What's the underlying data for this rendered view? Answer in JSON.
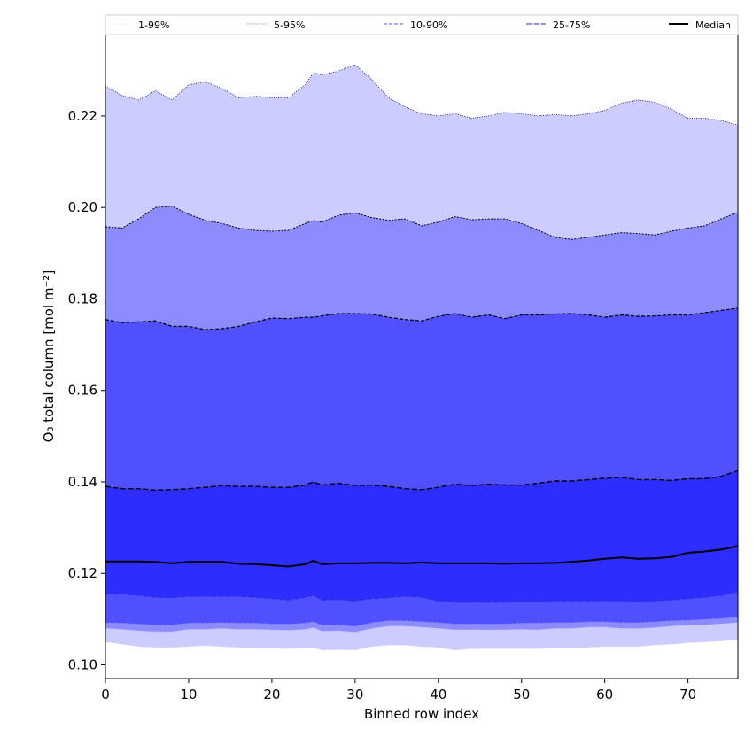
{
  "chart_data": {
    "type": "area",
    "xlabel": "Binned row index",
    "ylabel": "O₃ total column [mol m⁻²]",
    "xlim": [
      0,
      76
    ],
    "ylim": [
      0.097,
      0.238
    ],
    "x_ticks": [
      0,
      10,
      20,
      30,
      40,
      50,
      60,
      70
    ],
    "y_ticks": [
      0.1,
      0.12,
      0.14,
      0.16,
      0.18,
      0.2,
      0.22
    ],
    "y_tick_labels": [
      "0.10",
      "0.12",
      "0.14",
      "0.16",
      "0.18",
      "0.20",
      "0.22"
    ],
    "grid": false,
    "legend_position": "top",
    "x": [
      0,
      2,
      4,
      6,
      8,
      10,
      12,
      14,
      16,
      18,
      20,
      22,
      24,
      25,
      26,
      28,
      30,
      32,
      34,
      36,
      38,
      40,
      42,
      44,
      46,
      48,
      50,
      52,
      54,
      56,
      58,
      60,
      62,
      64,
      66,
      68,
      70,
      72,
      74,
      76
    ],
    "bands": [
      {
        "name": "1-99%",
        "color": "#ccccff",
        "lower": [
          0.105,
          0.1045,
          0.104,
          0.1038,
          0.1038,
          0.104,
          0.1042,
          0.104,
          0.1038,
          0.1037,
          0.1036,
          0.1035,
          0.1037,
          0.1038,
          0.1032,
          0.1033,
          0.1032,
          0.104,
          0.1043,
          0.1043,
          0.104,
          0.1038,
          0.1032,
          0.1035,
          0.1035,
          0.1035,
          0.1035,
          0.1035,
          0.1037,
          0.1037,
          0.1038,
          0.104,
          0.104,
          0.104,
          0.1043,
          0.1045,
          0.1048,
          0.105,
          0.1052,
          0.1055
        ],
        "upper": [
          0.2265,
          0.2245,
          0.2235,
          0.2255,
          0.2235,
          0.2268,
          0.2275,
          0.226,
          0.224,
          0.2243,
          0.224,
          0.224,
          0.2268,
          0.2295,
          0.229,
          0.2298,
          0.2312,
          0.228,
          0.224,
          0.222,
          0.2205,
          0.22,
          0.2205,
          0.2195,
          0.22,
          0.2208,
          0.2205,
          0.22,
          0.2203,
          0.22,
          0.2205,
          0.2212,
          0.2228,
          0.2235,
          0.223,
          0.2215,
          0.2195,
          0.2195,
          0.219,
          0.218
        ]
      },
      {
        "name": "5-95%",
        "color": "#8c8cff",
        "lower": [
          0.108,
          0.1078,
          0.1075,
          0.1073,
          0.1073,
          0.1078,
          0.1078,
          0.108,
          0.1078,
          0.1078,
          0.1077,
          0.1076,
          0.1078,
          0.1082,
          0.1074,
          0.1075,
          0.1072,
          0.108,
          0.1085,
          0.1085,
          0.1083,
          0.108,
          0.1077,
          0.1077,
          0.1077,
          0.1077,
          0.1078,
          0.1077,
          0.108,
          0.108,
          0.1083,
          0.1083,
          0.108,
          0.108,
          0.1082,
          0.1085,
          0.1087,
          0.1088,
          0.109,
          0.1093
        ],
        "upper": [
          0.1958,
          0.1955,
          0.1975,
          0.2,
          0.2003,
          0.1985,
          0.1972,
          0.1965,
          0.1955,
          0.195,
          0.1948,
          0.195,
          0.1965,
          0.1972,
          0.1968,
          0.1983,
          0.1988,
          0.1978,
          0.1972,
          0.1975,
          0.196,
          0.1968,
          0.198,
          0.1973,
          0.1975,
          0.1975,
          0.1965,
          0.195,
          0.1935,
          0.193,
          0.1935,
          0.194,
          0.1945,
          0.1943,
          0.194,
          0.1948,
          0.1955,
          0.196,
          0.1975,
          0.199
        ]
      },
      {
        "name": "10-90%",
        "color": "#5050ff",
        "lower": [
          0.1093,
          0.1092,
          0.109,
          0.1088,
          0.1088,
          0.1092,
          0.1092,
          0.1093,
          0.1092,
          0.1092,
          0.109,
          0.109,
          0.1092,
          0.1095,
          0.1088,
          0.1088,
          0.1085,
          0.1093,
          0.1097,
          0.1097,
          0.1095,
          0.1093,
          0.109,
          0.109,
          0.109,
          0.109,
          0.1092,
          0.1092,
          0.1093,
          0.1093,
          0.1095,
          0.1095,
          0.1093,
          0.1093,
          0.1095,
          0.1097,
          0.1098,
          0.11,
          0.1102,
          0.1105
        ],
        "upper": [
          0.1755,
          0.1748,
          0.175,
          0.1752,
          0.174,
          0.174,
          0.1733,
          0.1735,
          0.174,
          0.175,
          0.1758,
          0.1757,
          0.176,
          0.176,
          0.1763,
          0.1768,
          0.1768,
          0.1767,
          0.176,
          0.1755,
          0.1752,
          0.1762,
          0.1768,
          0.176,
          0.1765,
          0.1757,
          0.1765,
          0.1765,
          0.1767,
          0.1768,
          0.1765,
          0.176,
          0.1765,
          0.1762,
          0.1763,
          0.1765,
          0.1765,
          0.177,
          0.1775,
          0.178
        ]
      },
      {
        "name": "25-75%",
        "color": "#2d2dff",
        "lower": [
          0.1155,
          0.1155,
          0.1152,
          0.1148,
          0.1147,
          0.115,
          0.115,
          0.115,
          0.115,
          0.1148,
          0.1145,
          0.1142,
          0.1148,
          0.1152,
          0.1142,
          0.1143,
          0.114,
          0.1145,
          0.1147,
          0.115,
          0.1148,
          0.114,
          0.1137,
          0.1137,
          0.1137,
          0.1137,
          0.1138,
          0.1138,
          0.114,
          0.114,
          0.114,
          0.114,
          0.114,
          0.1138,
          0.114,
          0.1142,
          0.1145,
          0.1148,
          0.1152,
          0.116
        ],
        "upper": [
          0.139,
          0.1385,
          0.1385,
          0.1382,
          0.1383,
          0.1385,
          0.1388,
          0.1392,
          0.139,
          0.139,
          0.1388,
          0.1388,
          0.1393,
          0.14,
          0.1393,
          0.1397,
          0.1392,
          0.1393,
          0.139,
          0.1385,
          0.1383,
          0.1388,
          0.1395,
          0.1392,
          0.1395,
          0.1393,
          0.1393,
          0.1397,
          0.1402,
          0.1402,
          0.1405,
          0.1408,
          0.141,
          0.1405,
          0.1405,
          0.1403,
          0.1407,
          0.1407,
          0.1412,
          0.1425
        ]
      }
    ],
    "median": {
      "name": "Median",
      "color": "#000000",
      "values": [
        0.1226,
        0.1226,
        0.1226,
        0.1225,
        0.1222,
        0.1225,
        0.1225,
        0.1225,
        0.1221,
        0.122,
        0.1218,
        0.1215,
        0.122,
        0.1228,
        0.122,
        0.1222,
        0.1222,
        0.1223,
        0.1223,
        0.1222,
        0.1224,
        0.1222,
        0.1222,
        0.1222,
        0.1222,
        0.1221,
        0.1222,
        0.1222,
        0.1223,
        0.1225,
        0.1228,
        0.1232,
        0.1235,
        0.1232,
        0.1233,
        0.1236,
        0.1245,
        0.1248,
        0.1252,
        0.126
      ]
    }
  }
}
